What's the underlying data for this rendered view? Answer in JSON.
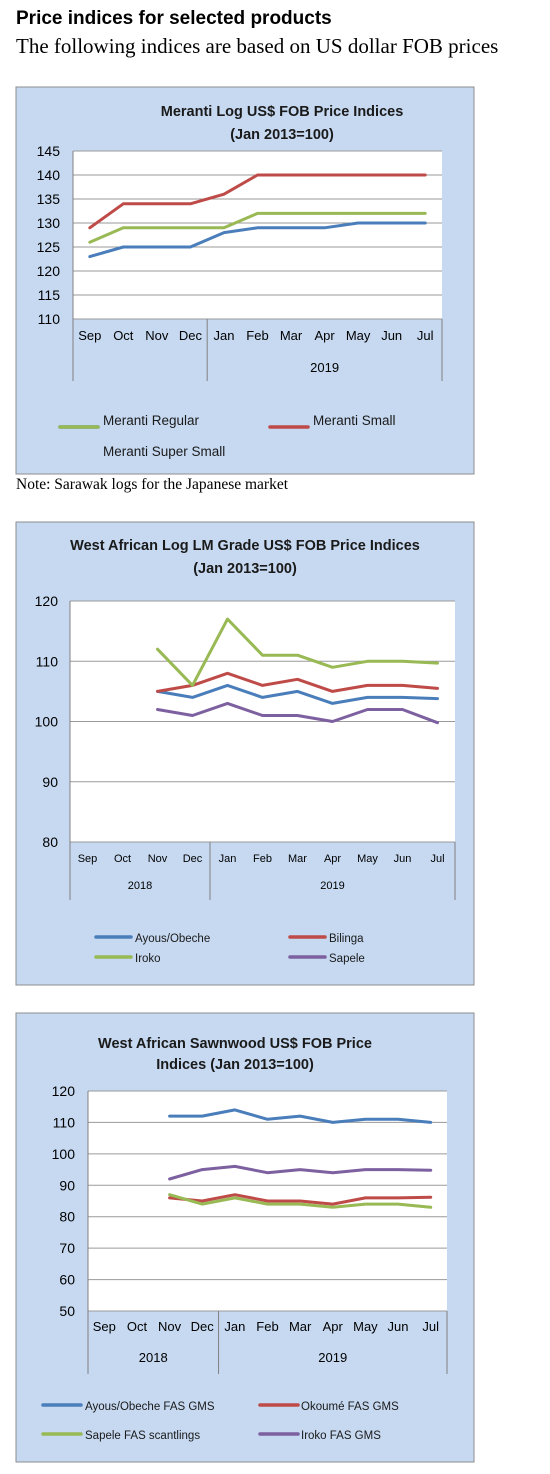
{
  "page": {
    "heading": "Price indices for selected products",
    "subheading": "The following indices are based on US dollar FOB prices",
    "note": "Note: Sarawak logs for the Japanese market"
  },
  "chart_data": [
    {
      "type": "line",
      "title_lines": [
        "Meranti Log US$ FOB Price Indices",
        "(Jan 2013=100)"
      ],
      "categories": [
        "Sep",
        "Oct",
        "Nov",
        "Dec",
        "Jan",
        "Feb",
        "Mar",
        "Apr",
        "May",
        "Jun",
        "Jul"
      ],
      "year_groups": [
        {
          "label": "",
          "from": 0,
          "to": 3
        },
        {
          "label": "2019",
          "from": 4,
          "to": 10
        }
      ],
      "ylim": [
        110,
        145
      ],
      "yticks": [
        110,
        115,
        120,
        125,
        130,
        135,
        140,
        145
      ],
      "grid": true,
      "legend_position": "bottom",
      "series": [
        {
          "name": "Meranti Regular",
          "color": "#4a7ebb",
          "values": [
            123,
            125,
            125,
            125,
            128,
            129,
            129,
            129,
            130,
            130,
            130
          ]
        },
        {
          "name": "Meranti Small",
          "color": "#be4b48",
          "values": [
            129,
            134,
            134,
            134,
            136,
            140,
            140,
            140,
            140,
            140,
            140
          ]
        },
        {
          "name": "Meranti Super Small",
          "color": "#98b954",
          "values": [
            126,
            129,
            129,
            129,
            129,
            132,
            132,
            132,
            132,
            132,
            132
          ]
        }
      ]
    },
    {
      "type": "line",
      "title_lines": [
        "West African Log LM Grade US$ FOB Price Indices",
        "(Jan 2013=100)"
      ],
      "categories": [
        "Sep",
        "Oct",
        "Nov",
        "Dec",
        "Jan",
        "Feb",
        "Mar",
        "Apr",
        "May",
        "Jun",
        "Jul"
      ],
      "year_groups": [
        {
          "label": "2018",
          "from": 0,
          "to": 3
        },
        {
          "label": "2019",
          "from": 4,
          "to": 10
        }
      ],
      "ylim": [
        80,
        120
      ],
      "yticks": [
        80,
        90,
        100,
        110,
        120
      ],
      "grid": true,
      "legend_position": "bottom",
      "series": [
        {
          "name": "Ayous/Obeche",
          "color": "#4a7ebb",
          "values": [
            null,
            null,
            105,
            104,
            106,
            104,
            105,
            103,
            104,
            104,
            103.8
          ]
        },
        {
          "name": "Bilinga",
          "color": "#be4b48",
          "values": [
            null,
            null,
            105,
            106,
            108,
            106,
            107,
            105,
            106,
            106,
            105.5
          ]
        },
        {
          "name": "Iroko",
          "color": "#98b954",
          "values": [
            null,
            null,
            112,
            106,
            117,
            111,
            111,
            109,
            110,
            110,
            109.7
          ]
        },
        {
          "name": "Sapele",
          "color": "#7d60a0",
          "values": [
            null,
            null,
            102,
            101,
            103,
            101,
            101,
            100,
            102,
            102,
            99.8
          ]
        }
      ]
    },
    {
      "type": "line",
      "title_lines": [
        "West African Sawnwood US$ FOB Price",
        "Indices (Jan 2013=100)"
      ],
      "categories": [
        "Sep",
        "Oct",
        "Nov",
        "Dec",
        "Jan",
        "Feb",
        "Mar",
        "Apr",
        "May",
        "Jun",
        "Jul"
      ],
      "year_groups": [
        {
          "label": "2018",
          "from": 0,
          "to": 3
        },
        {
          "label": "2019",
          "from": 4,
          "to": 10
        }
      ],
      "ylim": [
        50,
        120
      ],
      "yticks": [
        50,
        60,
        70,
        80,
        90,
        100,
        110,
        120
      ],
      "grid": true,
      "legend_position": "bottom",
      "series": [
        {
          "name": "Ayous/Obeche  FAS GMS",
          "color": "#4a7ebb",
          "values": [
            null,
            null,
            112,
            112,
            114,
            111,
            112,
            110,
            111,
            111,
            110
          ]
        },
        {
          "name": "Okoumé  FAS GMS",
          "color": "#be4b48",
          "values": [
            null,
            null,
            86,
            85,
            87,
            85,
            85,
            84,
            86,
            86,
            86.2
          ]
        },
        {
          "name": "Sapele FAS scantlings",
          "color": "#98b954",
          "values": [
            null,
            null,
            87,
            84,
            86,
            84,
            84,
            83,
            84,
            84,
            83
          ]
        },
        {
          "name": "Iroko FAS GMS",
          "color": "#7d60a0",
          "values": [
            null,
            null,
            92,
            95,
            96,
            94,
            95,
            94,
            95,
            95,
            94.8
          ]
        }
      ]
    }
  ]
}
